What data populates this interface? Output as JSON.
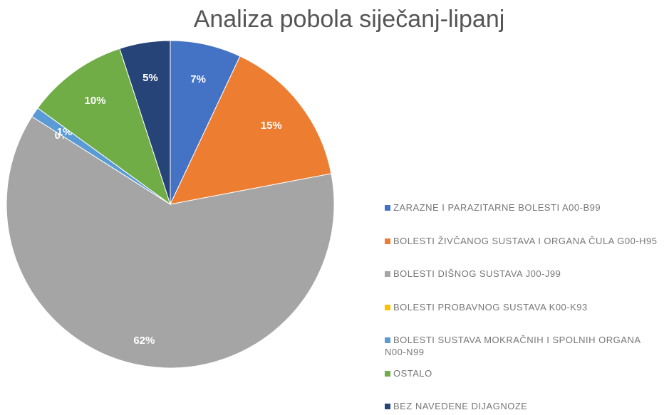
{
  "chart_data": {
    "type": "pie",
    "title": "Analiza pobola siječanj-lipanj",
    "categories": [
      "ZARAZNE I PARAZITARNE BOLESTI  A00-B99",
      "BOLESTI ŽIVČANOG SUSTAVA I ORGANA ČULA G00-H95",
      "BOLESTI DIŠNOG SUSTAVA J00-J99",
      "BOLESTI PROBAVNOG SUSTAVA K00-K93",
      "BOLESTI SUSTAVA MOKRAČNIH I SPOLNIH ORGANA  N00-N99",
      "OSTALO",
      "BEZ NAVEDENE DIJAGNOZE"
    ],
    "values": [
      7,
      15,
      62,
      0,
      1,
      10,
      5
    ],
    "value_labels": [
      "7%",
      "15%",
      "62%",
      "0%",
      "1%",
      "10%",
      "5%"
    ],
    "colors": [
      "#4472c4",
      "#ed7d31",
      "#a5a5a5",
      "#ffc000",
      "#5b9bd5",
      "#70ad47",
      "#264478"
    ],
    "legend": "right"
  }
}
